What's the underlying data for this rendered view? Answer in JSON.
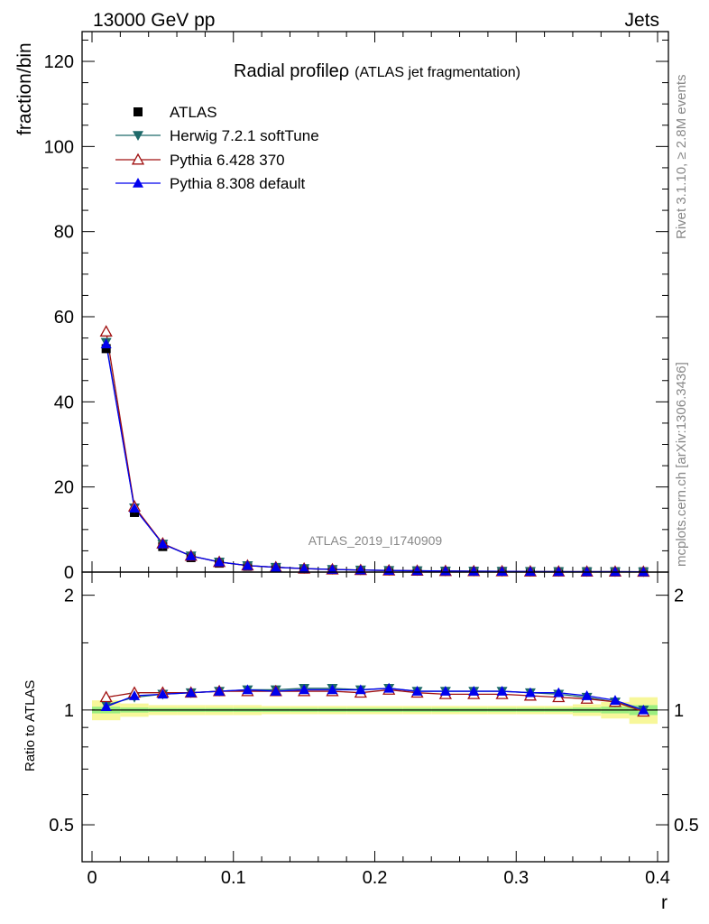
{
  "header": {
    "left": "13000 GeV pp",
    "right": "Jets"
  },
  "side": {
    "rivet": "Rivet 3.1.10, ≥ 2.8M events",
    "mcplots": "mcplots.cern.ch [arXiv:1306.3436]"
  },
  "watermark": "ATLAS_2019_I1740909",
  "chart_data": [
    {
      "type": "scatter",
      "title_main": "Radial profile",
      "title_symbol": "ρ",
      "title_sub": "(ATLAS jet fragmentation)",
      "xlabel": "r",
      "ylabel": "fraction/bin",
      "xlim": [
        0,
        0.4
      ],
      "ylim": [
        0,
        127
      ],
      "x_ticks": [
        "0",
        "0.1",
        "0.2",
        "0.3",
        "0.4"
      ],
      "y_ticks": [
        "0",
        "20",
        "40",
        "60",
        "80",
        "100",
        "120"
      ],
      "x": [
        0.01,
        0.03,
        0.05,
        0.07,
        0.09,
        0.11,
        0.13,
        0.15,
        0.17,
        0.19,
        0.21,
        0.23,
        0.25,
        0.27,
        0.29,
        0.31,
        0.33,
        0.35,
        0.37,
        0.39
      ],
      "series": [
        {
          "name": "ATLAS",
          "color": "#000000",
          "marker": "square",
          "values": [
            52.5,
            14.0,
            6.0,
            3.4,
            2.1,
            1.35,
            1.0,
            0.72,
            0.55,
            0.42,
            0.33,
            0.27,
            0.22,
            0.18,
            0.15,
            0.12,
            0.1,
            0.09,
            0.08,
            0.07
          ]
        },
        {
          "name": "Herwig 7.2.1 softTune",
          "color": "#1f6a6a",
          "marker": "triangle-down",
          "values": [
            54.0,
            15.1,
            6.6,
            3.8,
            2.38,
            1.53,
            1.14,
            0.83,
            0.63,
            0.48,
            0.38,
            0.31,
            0.25,
            0.21,
            0.17,
            0.14,
            0.12,
            0.1,
            0.09,
            0.07
          ]
        },
        {
          "name": "Pythia 6.428 370",
          "color": "#a01010",
          "marker": "triangle-up-open",
          "values": [
            56.5,
            15.4,
            6.7,
            3.8,
            2.36,
            1.52,
            1.13,
            0.81,
            0.61,
            0.47,
            0.37,
            0.3,
            0.24,
            0.2,
            0.17,
            0.13,
            0.11,
            0.1,
            0.09,
            0.07
          ]
        },
        {
          "name": "Pythia 8.308 default",
          "color": "#0000ee",
          "marker": "triangle-up",
          "values": [
            53.6,
            15.0,
            6.6,
            3.8,
            2.37,
            1.53,
            1.13,
            0.82,
            0.62,
            0.48,
            0.38,
            0.31,
            0.25,
            0.2,
            0.17,
            0.14,
            0.11,
            0.1,
            0.09,
            0.07
          ]
        }
      ],
      "legend_position": "top-left"
    },
    {
      "type": "line",
      "ylabel": "Ratio to ATLAS",
      "xlabel": "r",
      "xlim": [
        0,
        0.4
      ],
      "ylim": [
        0.4,
        2.3
      ],
      "y_ticks": [
        "0.5",
        "1",
        "2"
      ],
      "x": [
        0.01,
        0.03,
        0.05,
        0.07,
        0.09,
        0.11,
        0.13,
        0.15,
        0.17,
        0.19,
        0.21,
        0.23,
        0.25,
        0.27,
        0.29,
        0.31,
        0.33,
        0.35,
        0.37,
        0.39
      ],
      "band": {
        "stat_half_width": [
          0.02,
          0.015,
          0.012,
          0.012,
          0.012,
          0.012,
          0.012,
          0.012,
          0.012,
          0.012,
          0.012,
          0.012,
          0.012,
          0.012,
          0.012,
          0.012,
          0.012,
          0.015,
          0.02,
          0.03
        ],
        "total_half_width": [
          0.06,
          0.04,
          0.03,
          0.03,
          0.03,
          0.03,
          0.025,
          0.025,
          0.025,
          0.025,
          0.025,
          0.025,
          0.025,
          0.025,
          0.025,
          0.025,
          0.025,
          0.035,
          0.05,
          0.08
        ],
        "stat_color": "#9bee80",
        "total_color": "#f7f79a"
      },
      "series": [
        {
          "name": "Herwig 7.2.1 softTune",
          "color": "#1f6a6a",
          "marker": "triangle-down",
          "values": [
            1.03,
            1.08,
            1.1,
            1.11,
            1.12,
            1.13,
            1.13,
            1.14,
            1.14,
            1.13,
            1.14,
            1.12,
            1.12,
            1.12,
            1.12,
            1.11,
            1.1,
            1.08,
            1.05,
            1.0
          ]
        },
        {
          "name": "Pythia 6.428 370",
          "color": "#a01010",
          "marker": "triangle-up-open",
          "values": [
            1.08,
            1.11,
            1.11,
            1.11,
            1.12,
            1.12,
            1.12,
            1.12,
            1.12,
            1.11,
            1.13,
            1.11,
            1.1,
            1.1,
            1.1,
            1.09,
            1.08,
            1.07,
            1.05,
            0.99
          ]
        },
        {
          "name": "Pythia 8.308 default",
          "color": "#0000ee",
          "marker": "triangle-up",
          "values": [
            1.02,
            1.09,
            1.1,
            1.11,
            1.12,
            1.13,
            1.12,
            1.13,
            1.13,
            1.13,
            1.14,
            1.12,
            1.12,
            1.12,
            1.12,
            1.11,
            1.11,
            1.09,
            1.06,
            1.0
          ]
        }
      ]
    }
  ]
}
